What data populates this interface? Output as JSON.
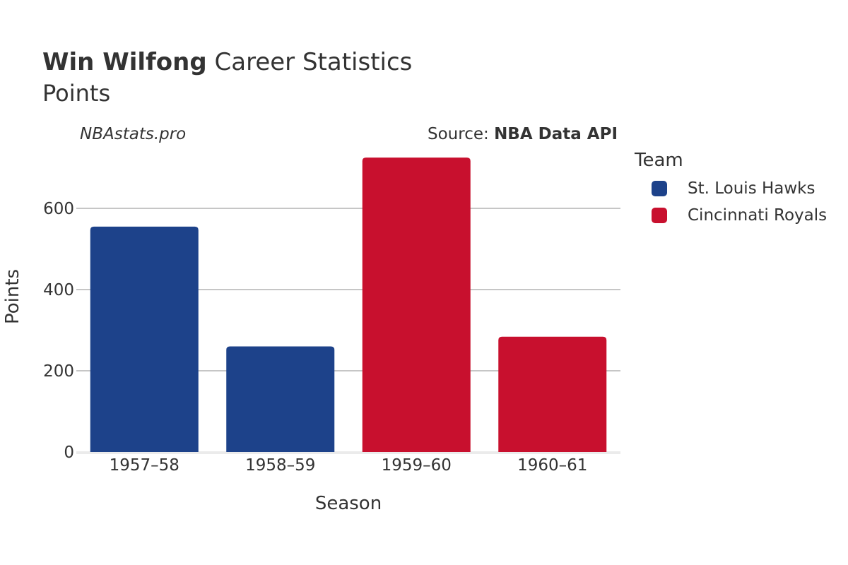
{
  "header": {
    "title_bold": "Win Wilfong",
    "title_rest": " Career Statistics",
    "subtitle": "Points",
    "watermark": "NBAstats.pro",
    "source_prefix": "Source: ",
    "source_name": "NBA Data API"
  },
  "legend": {
    "title": "Team",
    "items": [
      {
        "label": "St. Louis Hawks",
        "color": "#1d428a"
      },
      {
        "label": "Cincinnati Royals",
        "color": "#c8102e"
      }
    ]
  },
  "chart_data": {
    "type": "bar",
    "xlabel": "Season",
    "ylabel": "Points",
    "categories": [
      "1957–58",
      "1958–59",
      "1959–60",
      "1960–61"
    ],
    "values": [
      555,
      260,
      725,
      284
    ],
    "teams": [
      "St. Louis Hawks",
      "St. Louis Hawks",
      "Cincinnati Royals",
      "Cincinnati Royals"
    ],
    "colors": [
      "#1d428a",
      "#1d428a",
      "#c8102e",
      "#c8102e"
    ],
    "yticks": [
      0,
      200,
      400,
      600
    ],
    "ylim": [
      0,
      730
    ],
    "grid": true,
    "legend_position": "right"
  }
}
